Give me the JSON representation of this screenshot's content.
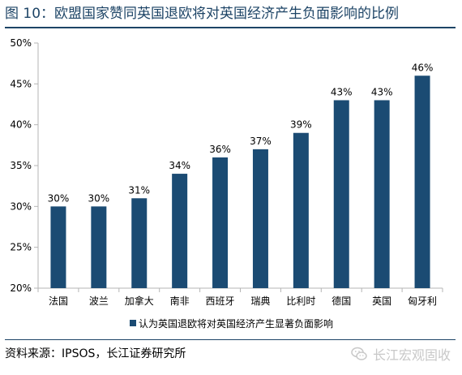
{
  "title": "图  10：欧盟国家赞同英国退欧将对英国经济产生负面影响的比例",
  "source": "资料来源：IPSOS，长江证券研究所",
  "watermark": "长江宏观固收",
  "colors": {
    "bar": "#1b4b73",
    "title": "#1d4466",
    "axis": "#b5b5b5"
  },
  "chart_data": {
    "type": "bar",
    "categories": [
      "法国",
      "波兰",
      "加拿大",
      "南非",
      "西班牙",
      "瑞典",
      "比利时",
      "德国",
      "英国",
      "匈牙利"
    ],
    "series": [
      {
        "name": "认为英国退欧将对英国经济产生显著负面影响",
        "values": [
          30,
          30,
          31,
          34,
          36,
          37,
          39,
          43,
          43,
          46
        ]
      }
    ],
    "data_labels": [
      "30%",
      "30%",
      "31%",
      "34%",
      "36%",
      "37%",
      "39%",
      "43%",
      "43%",
      "46%"
    ],
    "ylim": [
      20,
      50
    ],
    "yticks": [
      20,
      25,
      30,
      35,
      40,
      45,
      50
    ],
    "ytick_labels": [
      "20%",
      "25%",
      "30%",
      "35%",
      "40%",
      "45%",
      "50%"
    ],
    "grid": false,
    "legend_position": "bottom-center"
  }
}
